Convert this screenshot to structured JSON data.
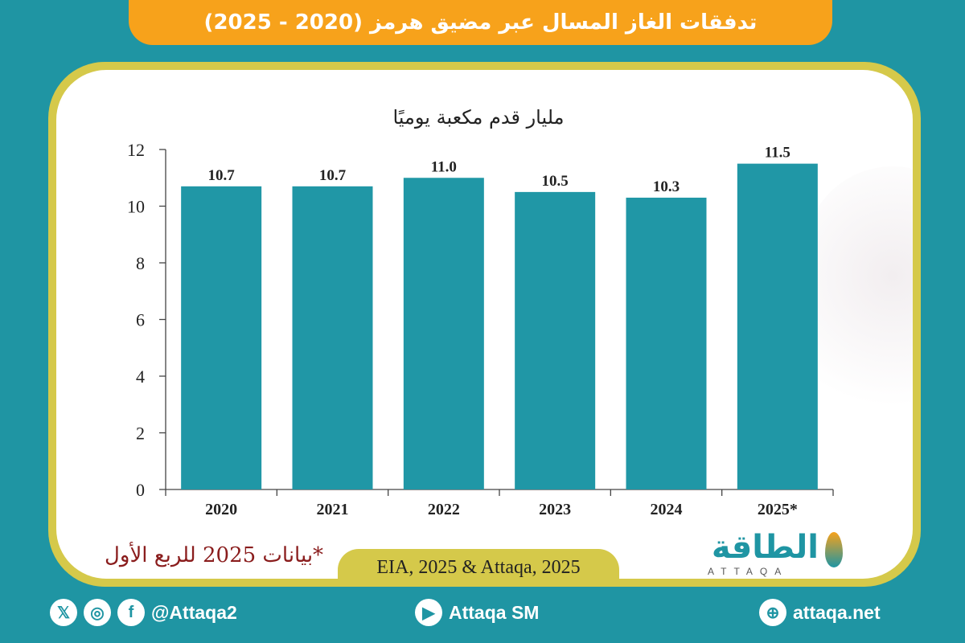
{
  "header": {
    "title": "تدفقات الغاز المسال عبر مضيق هرمز (2020 - 2025)"
  },
  "chart_data": {
    "type": "bar",
    "title": "مليار قدم مكعبة يوميًا",
    "categories": [
      "2020",
      "2021",
      "2022",
      "2023",
      "2024",
      "2025*"
    ],
    "values": [
      10.7,
      10.7,
      11.0,
      10.5,
      10.3,
      11.5
    ],
    "value_labels": [
      "10.7",
      "10.7",
      "11.0",
      "10.5",
      "10.3",
      "11.5"
    ],
    "yticks": [
      "0",
      "2",
      "4",
      "6",
      "8",
      "10",
      "12"
    ],
    "ylim": [
      0,
      12
    ],
    "xlabel": "",
    "ylabel": "",
    "bar_color": "#2097a6"
  },
  "note": "*بيانات 2025 للربع الأول",
  "source": "EIA, 2025 & Attaqa, 2025",
  "logo": {
    "arabic": "الطاقة",
    "latin": "ATTAQA"
  },
  "footer": {
    "social_handle": "@Attaqa2",
    "youtube": "Attaqa SM",
    "website": "attaqa.net",
    "x_icon_glyph": "𝕏",
    "instagram_icon_glyph": "◎",
    "facebook_icon_glyph": "f",
    "youtube_icon_glyph": "▶",
    "globe_icon_glyph": "⊕"
  },
  "colors": {
    "background": "#1f95a3",
    "accent": "#f7a21b",
    "frame": "#d5c94a"
  }
}
